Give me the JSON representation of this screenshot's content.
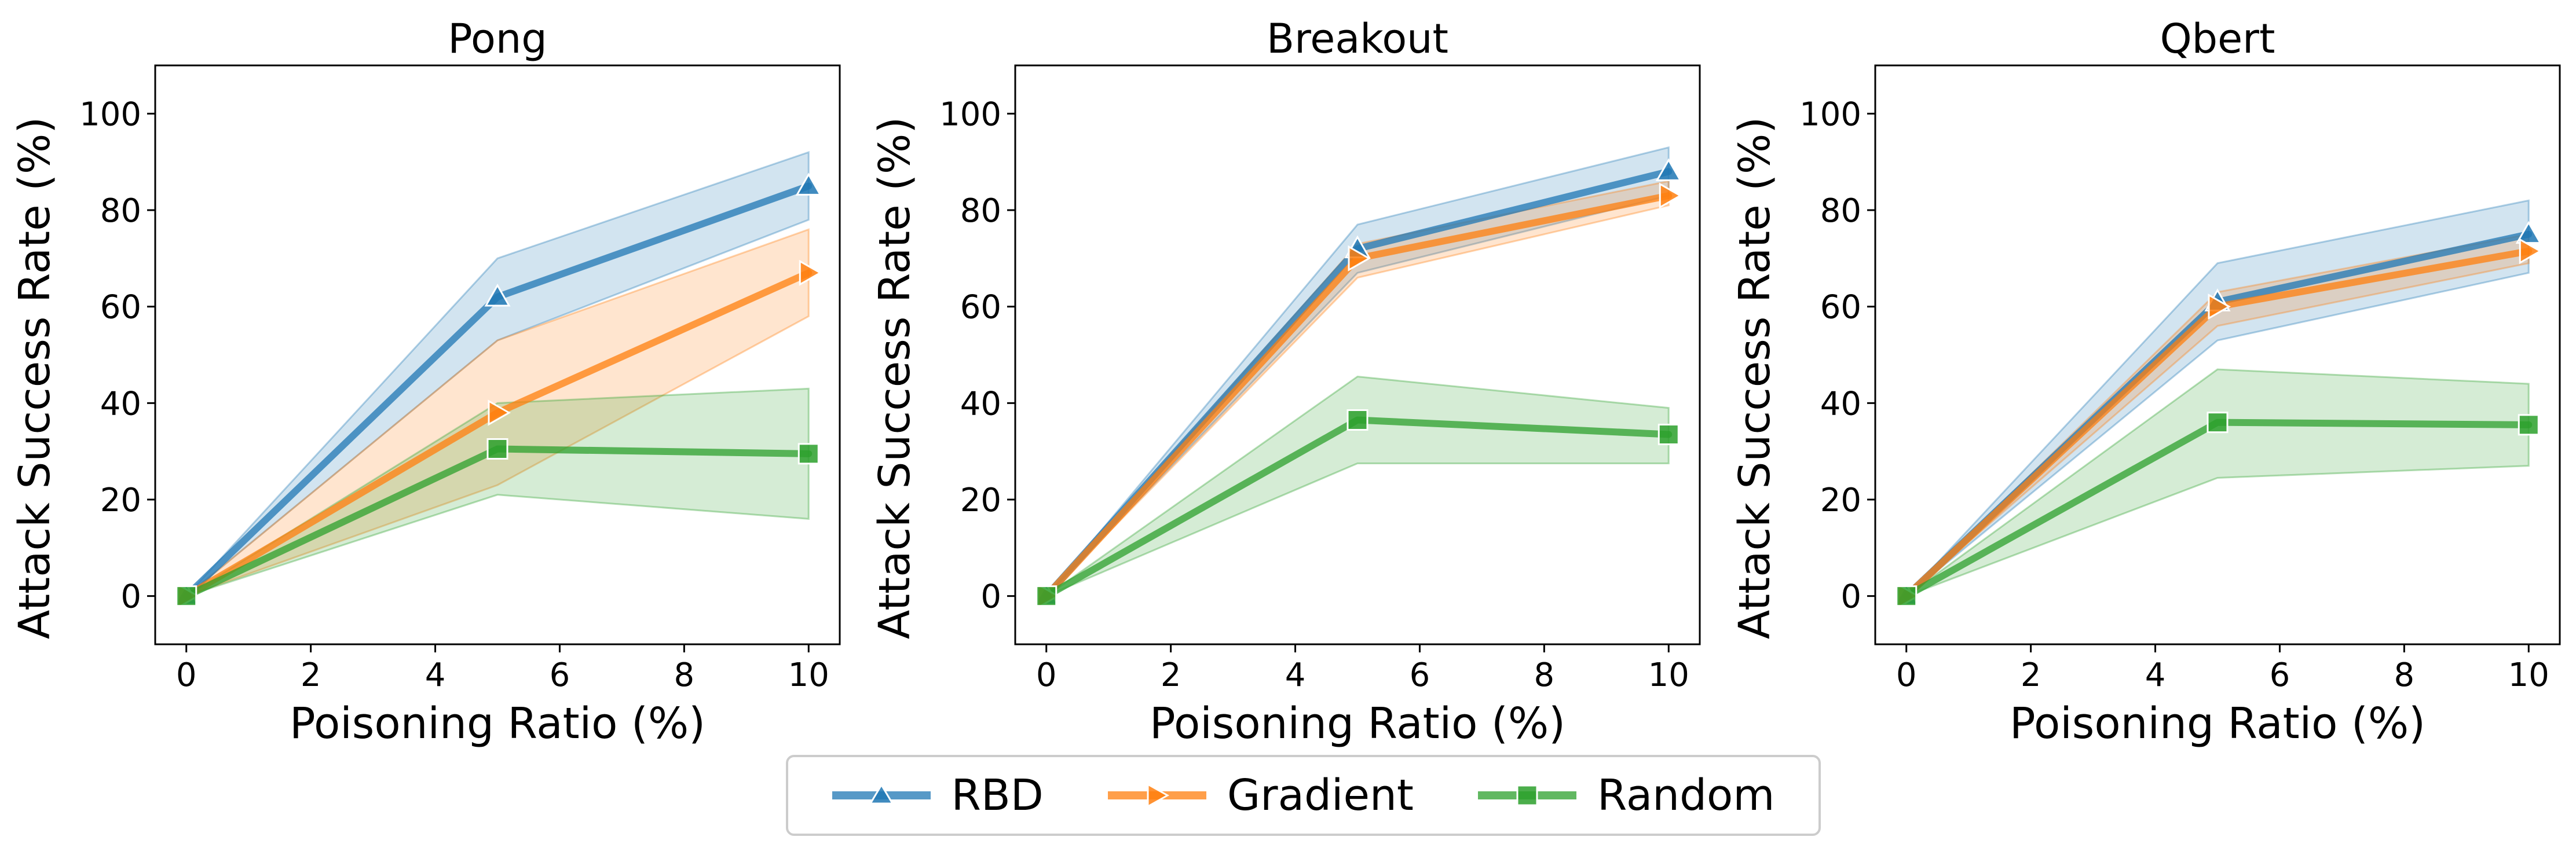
{
  "chart_data": [
    {
      "type": "line",
      "title": "Pong",
      "xlabel": "Poisoning Ratio (%)",
      "ylabel": "Attack Success Rate (%)",
      "xlim": [
        -0.5,
        10.5
      ],
      "ylim": [
        -10,
        110
      ],
      "xticks": [
        0,
        2,
        4,
        6,
        8,
        10
      ],
      "yticks": [
        0,
        20,
        40,
        60,
        80,
        100
      ],
      "x": [
        0,
        5,
        10
      ],
      "series": [
        {
          "name": "RBD",
          "values": [
            0,
            62,
            85
          ],
          "lower": [
            0,
            53,
            78
          ],
          "upper": [
            0,
            70,
            92
          ]
        },
        {
          "name": "Gradient",
          "values": [
            0,
            38,
            67
          ],
          "lower": [
            0,
            23,
            58
          ],
          "upper": [
            0,
            53,
            76
          ]
        },
        {
          "name": "Random",
          "values": [
            0,
            30.5,
            29.5
          ],
          "lower": [
            0,
            21,
            16
          ],
          "upper": [
            0,
            40,
            43
          ]
        }
      ]
    },
    {
      "type": "line",
      "title": "Breakout",
      "xlabel": "Poisoning Ratio (%)",
      "ylabel": "Attack Success Rate (%)",
      "xlim": [
        -0.5,
        10.5
      ],
      "ylim": [
        -10,
        110
      ],
      "xticks": [
        0,
        2,
        4,
        6,
        8,
        10
      ],
      "yticks": [
        0,
        20,
        40,
        60,
        80,
        100
      ],
      "x": [
        0,
        5,
        10
      ],
      "series": [
        {
          "name": "RBD",
          "values": [
            0,
            72,
            88
          ],
          "lower": [
            0,
            67,
            83
          ],
          "upper": [
            0,
            77,
            93
          ]
        },
        {
          "name": "Gradient",
          "values": [
            0,
            70,
            83
          ],
          "lower": [
            0,
            66,
            81
          ],
          "upper": [
            0,
            73,
            86
          ]
        },
        {
          "name": "Random",
          "values": [
            0,
            36.5,
            33.5
          ],
          "lower": [
            0,
            27.5,
            27.5
          ],
          "upper": [
            0,
            45.5,
            39
          ]
        }
      ]
    },
    {
      "type": "line",
      "title": "Qbert",
      "xlabel": "Poisoning Ratio (%)",
      "ylabel": "Attack Success Rate (%)",
      "xlim": [
        -0.5,
        10.5
      ],
      "ylim": [
        -10,
        110
      ],
      "xticks": [
        0,
        2,
        4,
        6,
        8,
        10
      ],
      "yticks": [
        0,
        20,
        40,
        60,
        80,
        100
      ],
      "x": [
        0,
        5,
        10
      ],
      "series": [
        {
          "name": "RBD",
          "values": [
            0,
            61,
            75
          ],
          "lower": [
            0,
            53,
            67
          ],
          "upper": [
            0,
            69,
            82
          ]
        },
        {
          "name": "Gradient",
          "values": [
            0,
            60,
            71.5
          ],
          "lower": [
            0,
            56,
            69
          ],
          "upper": [
            0,
            63,
            75
          ]
        },
        {
          "name": "Random",
          "values": [
            0,
            36,
            35.5
          ],
          "lower": [
            0,
            24.5,
            27
          ],
          "upper": [
            0,
            47,
            44
          ]
        }
      ]
    }
  ],
  "legend": {
    "items": [
      {
        "name": "RBD",
        "marker": "triangle-up",
        "color": "#1f77b4"
      },
      {
        "name": "Gradient",
        "marker": "triangle-right",
        "color": "#ff7f0e"
      },
      {
        "name": "Random",
        "marker": "square",
        "color": "#2ca02c"
      }
    ]
  },
  "colors": {
    "RBD": "#1f77b4",
    "Gradient": "#ff7f0e",
    "Random": "#2ca02c"
  },
  "markers": {
    "RBD": "triangle-up",
    "Gradient": "triangle-right",
    "Random": "square"
  }
}
